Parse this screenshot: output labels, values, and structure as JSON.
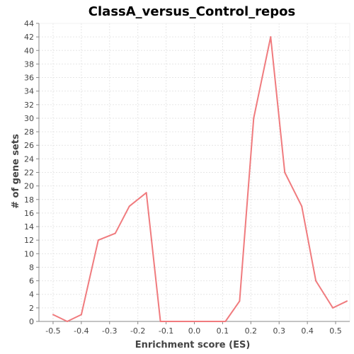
{
  "chart_data": {
    "type": "line",
    "title": "ClassA_versus_Control_repos",
    "xlabel": "Enrichment score (ES)",
    "ylabel": "# of gene sets",
    "xlim": [
      -0.55,
      0.55
    ],
    "ylim": [
      0,
      44
    ],
    "x_ticks": [
      -0.5,
      -0.4,
      -0.3,
      -0.2,
      -0.1,
      0.0,
      0.1,
      0.2,
      0.3,
      0.4,
      0.5
    ],
    "x_tick_labels": [
      "-0.5",
      "-0.4",
      "-0.3",
      "-0.2",
      "-0.1",
      "0.0",
      "0.1",
      "0.2",
      "0.3",
      "0.4",
      "0.5"
    ],
    "y_ticks": [
      0,
      2,
      4,
      6,
      8,
      10,
      12,
      14,
      16,
      18,
      20,
      22,
      24,
      26,
      28,
      30,
      32,
      34,
      36,
      38,
      40,
      42,
      44
    ],
    "y_tick_labels": [
      "0",
      "2",
      "4",
      "6",
      "8",
      "10",
      "12",
      "14",
      "16",
      "18",
      "20",
      "22",
      "24",
      "26",
      "28",
      "30",
      "32",
      "34",
      "36",
      "38",
      "40",
      "42",
      "44"
    ],
    "grid": true,
    "series": [
      {
        "color": "#f07b7e",
        "x": [
          -0.5,
          -0.45,
          -0.4,
          -0.34,
          -0.28,
          -0.23,
          -0.17,
          -0.12,
          -0.06,
          0.0,
          0.05,
          0.11,
          0.16,
          0.21,
          0.27,
          0.32,
          0.38,
          0.43,
          0.49,
          0.54
        ],
        "y": [
          1,
          0,
          1,
          12,
          13,
          17,
          19,
          0,
          0,
          0,
          0,
          0,
          3,
          30,
          42,
          22,
          17,
          6,
          2,
          3
        ]
      }
    ]
  }
}
